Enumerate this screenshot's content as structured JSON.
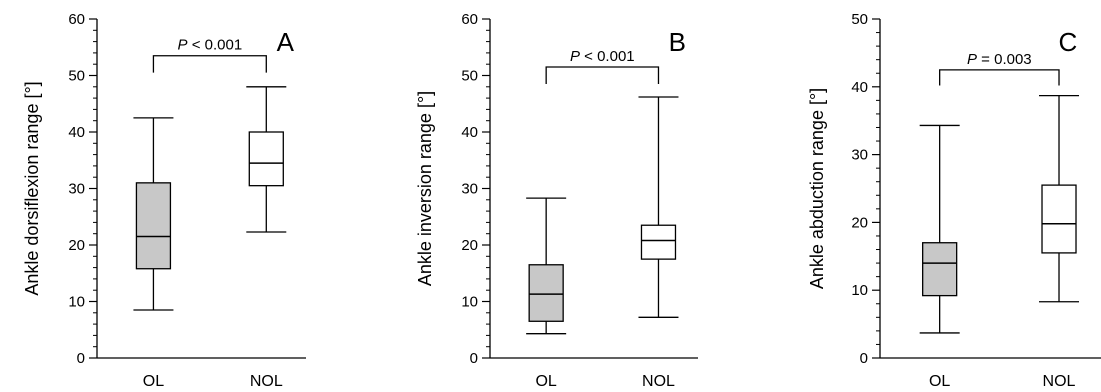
{
  "figure": {
    "background": "#ffffff"
  },
  "chart_data": [
    {
      "type": "boxplot",
      "panel_label": "A",
      "ylabel": "Ankle dorsiflexion range [°]",
      "ylim": [
        0,
        60
      ],
      "y_ticks": [
        0,
        10,
        20,
        30,
        40,
        50,
        60
      ],
      "y_tick_labels": [
        "0",
        "10",
        "20",
        "30",
        "40",
        "50",
        "60"
      ],
      "minor_tick_step": 2,
      "categories": [
        "OL",
        "NOL"
      ],
      "boxes": [
        {
          "category": "OL",
          "min": 8.5,
          "q1": 15.8,
          "median": 21.5,
          "q3": 31.0,
          "max": 42.5,
          "fill": "#c8c8c8"
        },
        {
          "category": "NOL",
          "min": 22.3,
          "q1": 30.5,
          "median": 34.5,
          "q3": 40.0,
          "max": 48.0,
          "fill": "#ffffff"
        }
      ],
      "significance": {
        "p_symbol": "P",
        "p_text": " < 0.001",
        "bracket_y": 53.5,
        "tip_y": 50.5
      }
    },
    {
      "type": "boxplot",
      "panel_label": "B",
      "ylabel": "Ankle inversion range [°]",
      "ylim": [
        0,
        60
      ],
      "y_ticks": [
        0,
        10,
        20,
        30,
        40,
        50,
        60
      ],
      "y_tick_labels": [
        "0",
        "10",
        "20",
        "30",
        "40",
        "50",
        "60"
      ],
      "minor_tick_step": 2,
      "categories": [
        "OL",
        "NOL"
      ],
      "boxes": [
        {
          "category": "OL",
          "min": 4.3,
          "q1": 6.5,
          "median": 11.3,
          "q3": 16.5,
          "max": 28.3,
          "fill": "#c8c8c8"
        },
        {
          "category": "NOL",
          "min": 7.2,
          "q1": 17.5,
          "median": 20.8,
          "q3": 23.5,
          "max": 46.2,
          "fill": "#ffffff"
        }
      ],
      "significance": {
        "p_symbol": "P",
        "p_text": " < 0.001",
        "bracket_y": 51.5,
        "tip_y": 48.5
      }
    },
    {
      "type": "boxplot",
      "panel_label": "C",
      "ylabel": "Ankle abduction range [°]",
      "ylim": [
        0,
        50
      ],
      "y_ticks": [
        0,
        10,
        20,
        30,
        40,
        50
      ],
      "y_tick_labels": [
        "0",
        "10",
        "20",
        "30",
        "40",
        "50"
      ],
      "minor_tick_step": 2,
      "categories": [
        "OL",
        "NOL"
      ],
      "boxes": [
        {
          "category": "OL",
          "min": 3.7,
          "q1": 9.2,
          "median": 14.0,
          "q3": 17.0,
          "max": 34.3,
          "fill": "#c8c8c8"
        },
        {
          "category": "NOL",
          "min": 8.3,
          "q1": 15.5,
          "median": 19.8,
          "q3": 25.5,
          "max": 38.7,
          "fill": "#ffffff"
        }
      ],
      "significance": {
        "p_symbol": "P",
        "p_text": " = 0.003",
        "bracket_y": 42.5,
        "tip_y": 40.2
      }
    }
  ]
}
